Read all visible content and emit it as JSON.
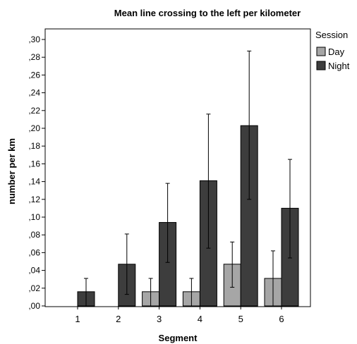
{
  "chart_data": {
    "type": "bar",
    "title": "Mean line crossing to the left per kilometer",
    "xlabel": "Segment",
    "ylabel": "number per km",
    "categories": [
      "1",
      "2",
      "3",
      "4",
      "5",
      "6"
    ],
    "yticks": [
      ",00",
      ",02",
      ",04",
      ",06",
      ",08",
      ",10",
      ",12",
      ",14",
      ",16",
      ",18",
      ",20",
      ",22",
      ",24",
      ",26",
      ",28",
      ",30"
    ],
    "ylim": [
      0,
      0.3
    ],
    "grid": false,
    "legend": {
      "title": "Session",
      "placement": "top-right"
    },
    "series": [
      {
        "name": "Day",
        "color": "#a6a6a6",
        "values": [
          0,
          0,
          0.016,
          0.016,
          0.047,
          0.031
        ],
        "err_low": [
          null,
          null,
          0.0,
          0.0,
          0.021,
          0.0
        ],
        "err_high": [
          null,
          null,
          0.031,
          0.031,
          0.072,
          0.062
        ]
      },
      {
        "name": "Night",
        "color": "#3d3d3d",
        "values": [
          0.016,
          0.047,
          0.094,
          0.141,
          0.203,
          0.11
        ],
        "err_low": [
          0.0,
          0.013,
          0.049,
          0.065,
          0.12,
          0.054
        ],
        "err_high": [
          0.031,
          0.081,
          0.138,
          0.216,
          0.287,
          0.165
        ]
      }
    ]
  }
}
